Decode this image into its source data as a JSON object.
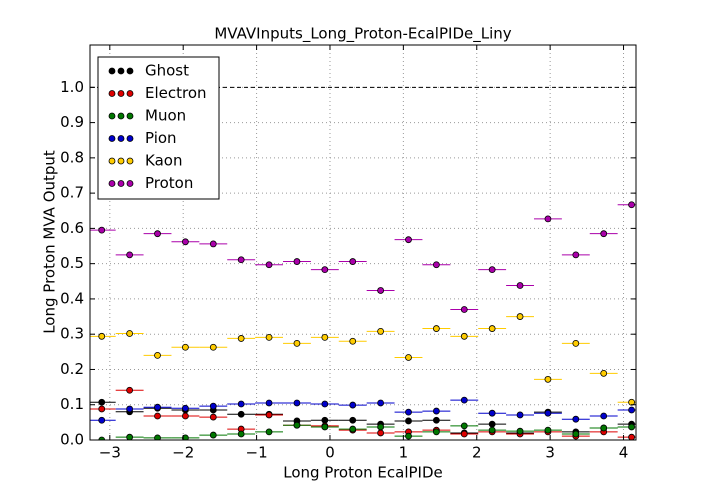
{
  "chart_data": {
    "type": "errorbar",
    "title": "MVAVInputs_Long_Proton-EcalPIDe_Liny",
    "xlabel": "Long Proton EcalPIDe",
    "ylabel": "Long Proton MVA Output",
    "x": [
      -3.11,
      -2.73,
      -2.35,
      -1.97,
      -1.59,
      -1.21,
      -0.83,
      -0.45,
      -0.07,
      0.31,
      0.69,
      1.07,
      1.45,
      1.83,
      2.21,
      2.59,
      2.97,
      3.35,
      3.73,
      4.11
    ],
    "xerr": 0.19,
    "xlim": [
      -3.27,
      4.17
    ],
    "ylim": [
      0,
      1.12
    ],
    "xticks": [
      {
        "value": -3,
        "label": "−3"
      },
      {
        "value": -2,
        "label": "−2"
      },
      {
        "value": -1,
        "label": "−1"
      },
      0,
      1,
      2,
      3,
      4
    ],
    "yticks": [
      {
        "value": 0,
        "label": "0.0"
      },
      0.1,
      0.2,
      0.3,
      0.4,
      0.5,
      0.6,
      0.7,
      0.8,
      0.9,
      {
        "value": 1,
        "label": "1.0"
      }
    ],
    "hline": 1.0,
    "grid": true,
    "legend": "upper left",
    "series": [
      {
        "name": "Ghost",
        "color": "#000000",
        "values": [
          0.107,
          0.08,
          0.09,
          0.085,
          0.085,
          0.073,
          0.073,
          0.054,
          0.056,
          0.056,
          0.045,
          0.054,
          0.056,
          0.02,
          0.045,
          0.02,
          0.079,
          0.023,
          0.034,
          0.045
        ]
      },
      {
        "name": "Electron",
        "color": "#dd0000",
        "values": [
          0.088,
          0.141,
          0.068,
          0.068,
          0.065,
          0.031,
          0.071,
          0.042,
          0.04,
          0.028,
          0.02,
          0.023,
          0.028,
          0.017,
          0.023,
          0.017,
          0.023,
          0.011,
          0.023,
          0.008
        ]
      },
      {
        "name": "Muon",
        "color": "#007700",
        "values": [
          0.0,
          0.008,
          0.006,
          0.006,
          0.014,
          0.017,
          0.023,
          0.042,
          0.037,
          0.031,
          0.037,
          0.011,
          0.023,
          0.04,
          0.028,
          0.025,
          0.028,
          0.017,
          0.034,
          0.037
        ]
      },
      {
        "name": "Pion",
        "color": "#0000cc",
        "values": [
          0.056,
          0.088,
          0.093,
          0.09,
          0.096,
          0.102,
          0.105,
          0.105,
          0.102,
          0.099,
          0.105,
          0.079,
          0.082,
          0.113,
          0.076,
          0.071,
          0.076,
          0.059,
          0.068,
          0.085
        ]
      },
      {
        "name": "Kaon",
        "color": "#ffcc00",
        "values": [
          0.294,
          0.302,
          0.24,
          0.263,
          0.263,
          0.288,
          0.291,
          0.274,
          0.291,
          0.28,
          0.308,
          0.234,
          0.316,
          0.294,
          0.316,
          0.35,
          0.172,
          0.274,
          0.189,
          0.107
        ]
      },
      {
        "name": "Proton",
        "color": "#aa00aa",
        "values": [
          0.595,
          0.525,
          0.585,
          0.562,
          0.556,
          0.511,
          0.497,
          0.506,
          0.483,
          0.506,
          0.424,
          0.568,
          0.497,
          0.37,
          0.483,
          0.438,
          0.627,
          0.525,
          0.585,
          0.667
        ]
      }
    ]
  }
}
